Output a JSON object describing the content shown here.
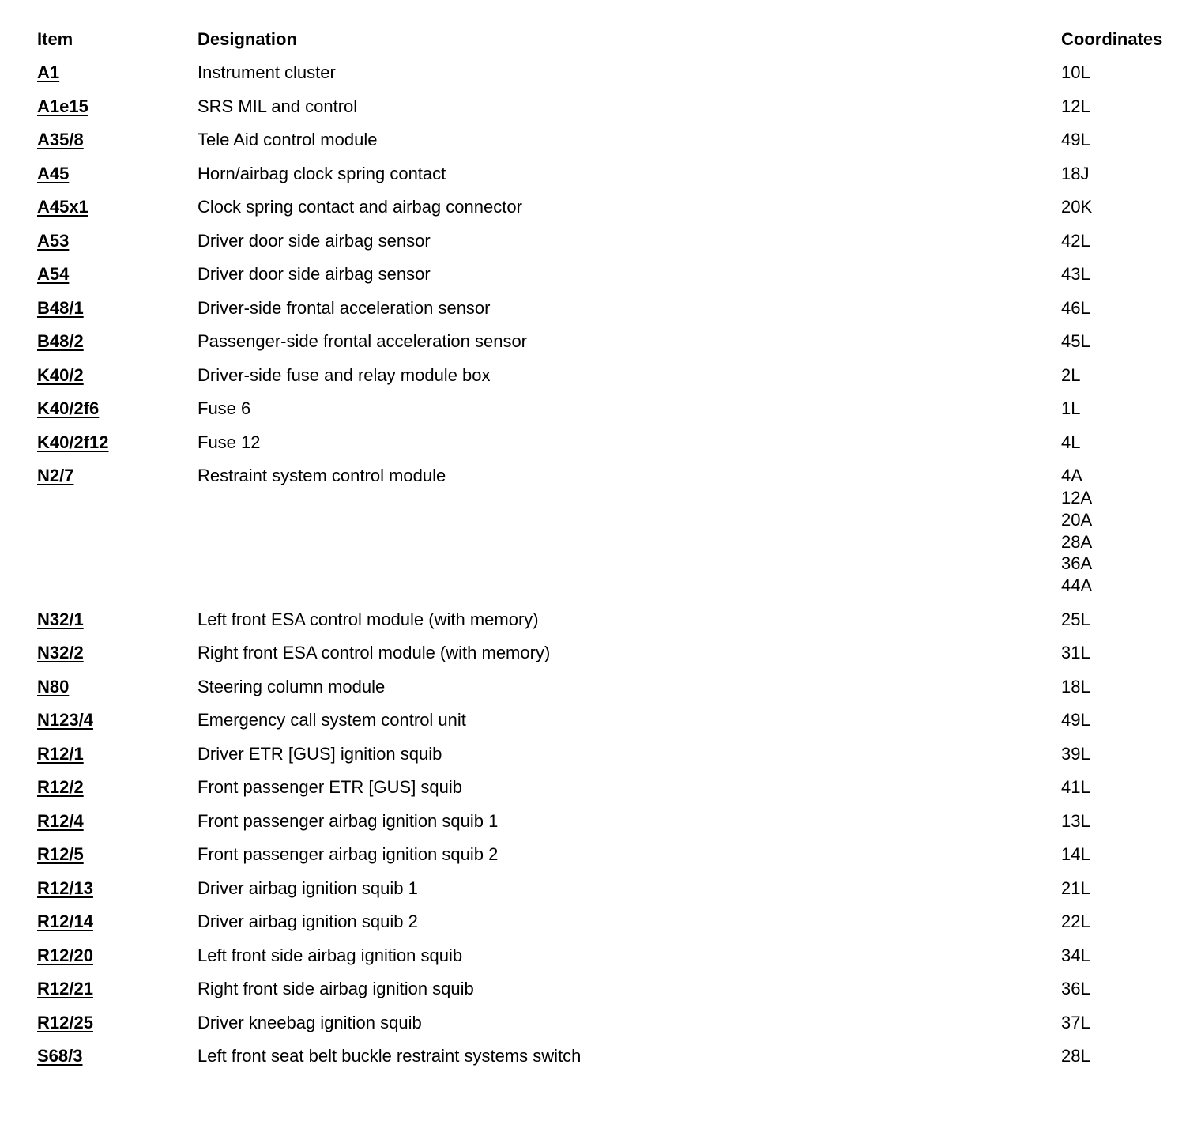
{
  "headers": {
    "item": "Item",
    "designation": "Designation",
    "coordinates": "Coordinates"
  },
  "rows": [
    {
      "item": "A1",
      "designation": "Instrument cluster",
      "coordinates": [
        "10L"
      ]
    },
    {
      "item": "A1e15",
      "designation": "SRS MIL and control",
      "coordinates": [
        "12L"
      ]
    },
    {
      "item": "A35/8",
      "designation": "Tele Aid control module",
      "coordinates": [
        "49L"
      ]
    },
    {
      "item": "A45",
      "designation": "Horn/airbag clock spring contact",
      "coordinates": [
        "18J"
      ]
    },
    {
      "item": "A45x1",
      "designation": "Clock spring contact and airbag connector",
      "coordinates": [
        "20K"
      ]
    },
    {
      "item": "A53",
      "designation": "Driver door side airbag sensor",
      "coordinates": [
        "42L"
      ]
    },
    {
      "item": "A54",
      "designation": "Driver door side airbag sensor",
      "coordinates": [
        "43L"
      ]
    },
    {
      "item": "B48/1",
      "designation": "Driver-side frontal acceleration sensor",
      "coordinates": [
        "46L"
      ]
    },
    {
      "item": "B48/2",
      "designation": "Passenger-side frontal acceleration sensor",
      "coordinates": [
        "45L"
      ]
    },
    {
      "item": "K40/2",
      "designation": "Driver-side fuse and relay module box",
      "coordinates": [
        "2L"
      ]
    },
    {
      "item": "K40/2f6",
      "designation": "Fuse 6",
      "coordinates": [
        "1L"
      ]
    },
    {
      "item": "K40/2f12",
      "designation": "Fuse 12",
      "coordinates": [
        "4L"
      ]
    },
    {
      "item": "N2/7",
      "designation": "Restraint system control module",
      "coordinates": [
        "4A",
        "12A",
        "20A",
        "28A",
        "36A",
        "44A"
      ]
    },
    {
      "item": "N32/1",
      "designation": "Left front ESA control module (with memory)",
      "coordinates": [
        "25L"
      ]
    },
    {
      "item": "N32/2",
      "designation": "Right front ESA control module (with memory)",
      "coordinates": [
        "31L"
      ]
    },
    {
      "item": "N80",
      "designation": "Steering column module",
      "coordinates": [
        "18L"
      ]
    },
    {
      "item": "N123/4",
      "designation": "Emergency call system control unit",
      "coordinates": [
        "49L"
      ]
    },
    {
      "item": "R12/1",
      "designation": "Driver ETR [GUS] ignition squib",
      "coordinates": [
        "39L"
      ]
    },
    {
      "item": "R12/2",
      "designation": "Front passenger ETR [GUS] squib",
      "coordinates": [
        "41L"
      ]
    },
    {
      "item": "R12/4",
      "designation": "Front passenger airbag ignition squib 1",
      "coordinates": [
        "13L"
      ]
    },
    {
      "item": "R12/5",
      "designation": "Front passenger airbag ignition squib 2",
      "coordinates": [
        "14L"
      ]
    },
    {
      "item": "R12/13",
      "designation": "Driver airbag ignition squib 1",
      "coordinates": [
        "21L"
      ]
    },
    {
      "item": "R12/14",
      "designation": "Driver airbag ignition squib 2",
      "coordinates": [
        "22L"
      ]
    },
    {
      "item": "R12/20",
      "designation": "Left front side airbag ignition squib",
      "coordinates": [
        "34L"
      ]
    },
    {
      "item": "R12/21",
      "designation": "Right front side airbag ignition squib",
      "coordinates": [
        "36L"
      ]
    },
    {
      "item": "R12/25",
      "designation": "Driver kneebag ignition squib",
      "coordinates": [
        "37L"
      ]
    },
    {
      "item": "S68/3",
      "designation": "Left front seat belt buckle restraint systems switch",
      "coordinates": [
        "28L"
      ]
    }
  ]
}
